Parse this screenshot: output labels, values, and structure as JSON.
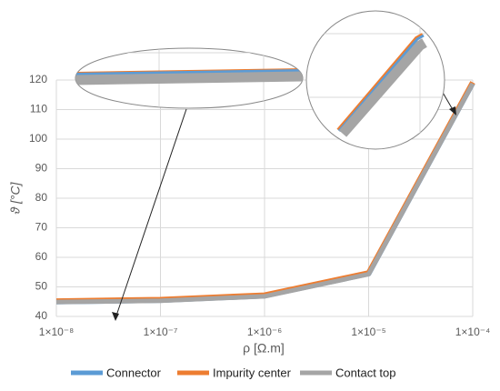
{
  "chart_data": {
    "type": "line",
    "x_label": "ρ [Ω.m]",
    "y_label": "ϑ [°C]",
    "x": [
      1e-08,
      1e-07,
      1e-06,
      1e-05,
      0.0001
    ],
    "xscale": "log",
    "series": [
      {
        "name": "Connector",
        "color": "#5b9bd5",
        "values": [
          45,
          45.5,
          47,
          54.5,
          119
        ]
      },
      {
        "name": "Impurity center",
        "color": "#ed7d31",
        "values": [
          45.2,
          45.7,
          47.2,
          54.7,
          119.2
        ]
      },
      {
        "name": "Contact top",
        "color": "#a5a5a5",
        "values": [
          44.9,
          45.3,
          46.8,
          54.3,
          118.8
        ]
      }
    ],
    "xlim": [
      1e-08,
      0.0001
    ],
    "xticks": [
      {
        "value": 1e-08,
        "label": "1×10⁻⁸"
      },
      {
        "value": 1e-07,
        "label": "1×10⁻⁷"
      },
      {
        "value": 1e-06,
        "label": "1×10⁻⁶"
      },
      {
        "value": 1e-05,
        "label": "1×10⁻⁵"
      },
      {
        "value": 0.0001,
        "label": "1×10⁻⁴"
      }
    ],
    "ylim": [
      40,
      120
    ],
    "yticks": [
      40,
      50,
      60,
      70,
      80,
      90,
      100,
      110,
      120
    ],
    "grid": true
  }
}
